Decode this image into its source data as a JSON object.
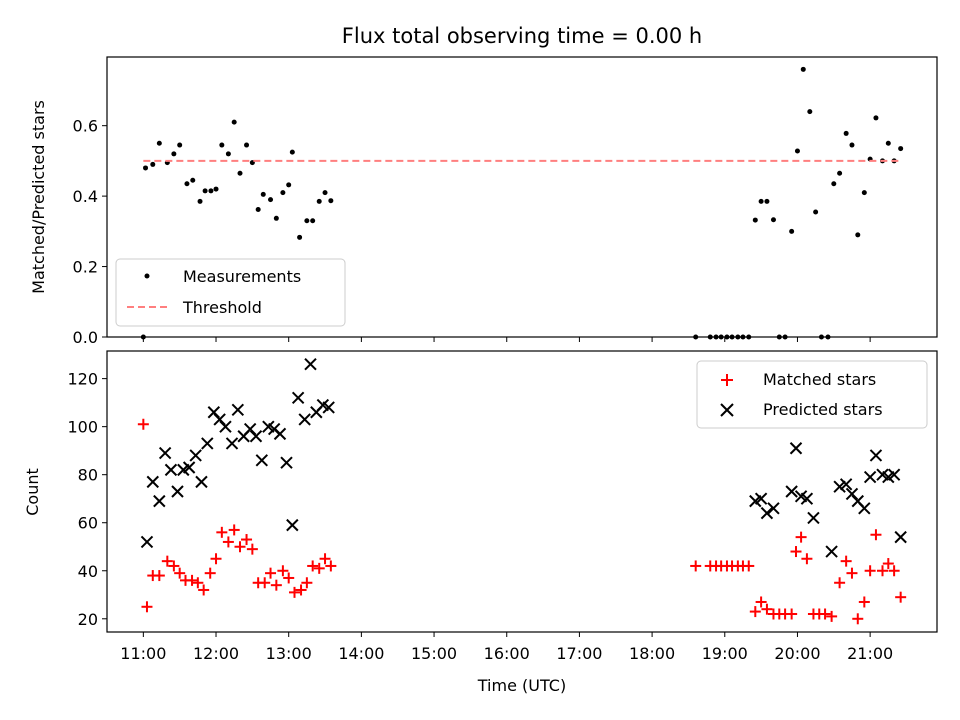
{
  "chart_data": {
    "type": "scatter",
    "title": "Flux total observing time = 0.00 h",
    "xlabel": "Time (UTC)",
    "xlim": [
      10.5,
      21.92
    ],
    "xticks": [
      "11:00",
      "12:00",
      "13:00",
      "14:00",
      "15:00",
      "16:00",
      "17:00",
      "18:00",
      "19:00",
      "20:00",
      "21:00"
    ],
    "top": {
      "ylabel": "Matched/Predicted stars",
      "ylim": [
        0.0,
        0.795
      ],
      "yticks": [
        "0.0",
        "0.2",
        "0.4",
        "0.6"
      ],
      "legend": {
        "placement": "lower-left",
        "entries": [
          "Measurements",
          "Threshold"
        ]
      },
      "series": [
        {
          "name": "Measurements",
          "marker": "dot",
          "color": "#000000",
          "points": [
            [
              11.0,
              0.0
            ],
            [
              11.03,
              0.48
            ],
            [
              11.13,
              0.49
            ],
            [
              11.22,
              0.55
            ],
            [
              11.33,
              0.495
            ],
            [
              11.42,
              0.52
            ],
            [
              11.5,
              0.545
            ],
            [
              11.6,
              0.435
            ],
            [
              11.68,
              0.445
            ],
            [
              11.78,
              0.385
            ],
            [
              11.85,
              0.415
            ],
            [
              11.93,
              0.415
            ],
            [
              12.0,
              0.42
            ],
            [
              12.08,
              0.545
            ],
            [
              12.17,
              0.52
            ],
            [
              12.25,
              0.61
            ],
            [
              12.33,
              0.465
            ],
            [
              12.42,
              0.545
            ],
            [
              12.5,
              0.495
            ],
            [
              12.58,
              0.362
            ],
            [
              12.65,
              0.405
            ],
            [
              12.75,
              0.39
            ],
            [
              12.83,
              0.337
            ],
            [
              12.92,
              0.41
            ],
            [
              13.0,
              0.432
            ],
            [
              13.05,
              0.525
            ],
            [
              13.15,
              0.283
            ],
            [
              13.25,
              0.33
            ],
            [
              13.33,
              0.33
            ],
            [
              13.42,
              0.385
            ],
            [
              13.5,
              0.41
            ],
            [
              13.58,
              0.387
            ],
            [
              18.6,
              0.0
            ],
            [
              18.8,
              0.0
            ],
            [
              18.88,
              0.0
            ],
            [
              18.95,
              0.0
            ],
            [
              19.03,
              0.0
            ],
            [
              19.1,
              0.0
            ],
            [
              19.18,
              0.0
            ],
            [
              19.25,
              0.0
            ],
            [
              19.33,
              0.0
            ],
            [
              19.42,
              0.332
            ],
            [
              19.5,
              0.385
            ],
            [
              19.58,
              0.385
            ],
            [
              19.67,
              0.333
            ],
            [
              19.75,
              0.0
            ],
            [
              19.83,
              0.0
            ],
            [
              19.92,
              0.3
            ],
            [
              20.0,
              0.528
            ],
            [
              20.08,
              0.76
            ],
            [
              20.17,
              0.64
            ],
            [
              20.25,
              0.355
            ],
            [
              20.33,
              0.0
            ],
            [
              20.42,
              0.0
            ],
            [
              20.5,
              0.435
            ],
            [
              20.58,
              0.465
            ],
            [
              20.67,
              0.578
            ],
            [
              20.75,
              0.545
            ],
            [
              20.83,
              0.29
            ],
            [
              20.92,
              0.41
            ],
            [
              21.0,
              0.505
            ],
            [
              21.08,
              0.622
            ],
            [
              21.17,
              0.5
            ],
            [
              21.25,
              0.55
            ],
            [
              21.33,
              0.5
            ],
            [
              21.42,
              0.535
            ]
          ]
        },
        {
          "name": "Threshold",
          "style": "dashed",
          "color": "#ff7f7f",
          "points": [
            [
              11.0,
              0.5
            ],
            [
              21.42,
              0.5
            ]
          ]
        }
      ]
    },
    "bottom": {
      "ylabel": "Count",
      "ylim": [
        14.5,
        131.5
      ],
      "yticks": [
        "20",
        "40",
        "60",
        "80",
        "100",
        "120"
      ],
      "legend": {
        "placement": "upper-right",
        "entries": [
          "Matched stars",
          "Predicted stars"
        ]
      },
      "series": [
        {
          "name": "Matched stars",
          "marker": "plus",
          "color": "#ff0000",
          "points": [
            [
              11.0,
              101
            ],
            [
              11.05,
              25
            ],
            [
              11.13,
              38
            ],
            [
              11.22,
              38
            ],
            [
              11.33,
              44
            ],
            [
              11.42,
              42
            ],
            [
              11.5,
              39
            ],
            [
              11.58,
              36
            ],
            [
              11.67,
              36
            ],
            [
              11.75,
              35
            ],
            [
              11.83,
              32
            ],
            [
              11.92,
              39
            ],
            [
              12.0,
              45
            ],
            [
              12.08,
              56
            ],
            [
              12.17,
              52
            ],
            [
              12.25,
              57
            ],
            [
              12.33,
              50
            ],
            [
              12.42,
              53
            ],
            [
              12.5,
              49
            ],
            [
              12.58,
              35
            ],
            [
              12.67,
              35
            ],
            [
              12.75,
              39
            ],
            [
              12.83,
              34
            ],
            [
              12.92,
              40
            ],
            [
              13.0,
              37
            ],
            [
              13.08,
              31
            ],
            [
              13.17,
              32
            ],
            [
              13.25,
              35
            ],
            [
              13.33,
              42
            ],
            [
              13.42,
              41
            ],
            [
              13.5,
              45
            ],
            [
              13.58,
              42
            ],
            [
              18.6,
              42
            ],
            [
              18.8,
              42
            ],
            [
              18.88,
              42
            ],
            [
              18.95,
              42
            ],
            [
              19.03,
              42
            ],
            [
              19.1,
              42
            ],
            [
              19.18,
              42
            ],
            [
              19.25,
              42
            ],
            [
              19.33,
              42
            ],
            [
              19.42,
              23
            ],
            [
              19.5,
              27
            ],
            [
              19.58,
              24
            ],
            [
              19.67,
              22
            ],
            [
              19.75,
              22
            ],
            [
              19.83,
              22
            ],
            [
              19.92,
              22
            ],
            [
              19.98,
              48
            ],
            [
              20.05,
              54
            ],
            [
              20.13,
              45
            ],
            [
              20.22,
              22
            ],
            [
              20.3,
              22
            ],
            [
              20.38,
              22
            ],
            [
              20.47,
              21
            ],
            [
              20.58,
              35
            ],
            [
              20.67,
              44
            ],
            [
              20.75,
              39
            ],
            [
              20.83,
              20
            ],
            [
              20.92,
              27
            ],
            [
              21.0,
              40
            ],
            [
              21.08,
              55
            ],
            [
              21.17,
              40
            ],
            [
              21.25,
              43
            ],
            [
              21.33,
              40
            ],
            [
              21.42,
              29
            ]
          ]
        },
        {
          "name": "Predicted stars",
          "marker": "x",
          "color": "#000000",
          "points": [
            [
              11.05,
              52
            ],
            [
              11.13,
              77
            ],
            [
              11.22,
              69
            ],
            [
              11.3,
              89
            ],
            [
              11.38,
              82
            ],
            [
              11.47,
              73
            ],
            [
              11.55,
              82
            ],
            [
              11.63,
              83
            ],
            [
              11.72,
              88
            ],
            [
              11.8,
              77
            ],
            [
              11.88,
              93
            ],
            [
              11.97,
              106
            ],
            [
              12.05,
              103
            ],
            [
              12.13,
              100
            ],
            [
              12.22,
              93
            ],
            [
              12.3,
              107
            ],
            [
              12.38,
              96
            ],
            [
              12.47,
              99
            ],
            [
              12.55,
              96
            ],
            [
              12.63,
              86
            ],
            [
              12.72,
              100
            ],
            [
              12.8,
              99
            ],
            [
              12.88,
              97
            ],
            [
              12.97,
              85
            ],
            [
              13.05,
              59
            ],
            [
              13.13,
              112
            ],
            [
              13.22,
              103
            ],
            [
              13.3,
              126
            ],
            [
              13.38,
              106
            ],
            [
              13.47,
              109
            ],
            [
              13.55,
              108
            ],
            [
              19.42,
              69
            ],
            [
              19.5,
              70
            ],
            [
              19.58,
              64
            ],
            [
              19.67,
              66
            ],
            [
              19.92,
              73
            ],
            [
              19.98,
              91
            ],
            [
              20.05,
              71
            ],
            [
              20.13,
              70
            ],
            [
              20.22,
              62
            ],
            [
              20.47,
              48
            ],
            [
              20.58,
              75
            ],
            [
              20.67,
              76
            ],
            [
              20.75,
              72
            ],
            [
              20.83,
              69
            ],
            [
              20.92,
              66
            ],
            [
              21.0,
              79
            ],
            [
              21.08,
              88
            ],
            [
              21.17,
              80
            ],
            [
              21.25,
              79
            ],
            [
              21.33,
              80
            ],
            [
              21.42,
              54
            ]
          ]
        }
      ]
    }
  }
}
